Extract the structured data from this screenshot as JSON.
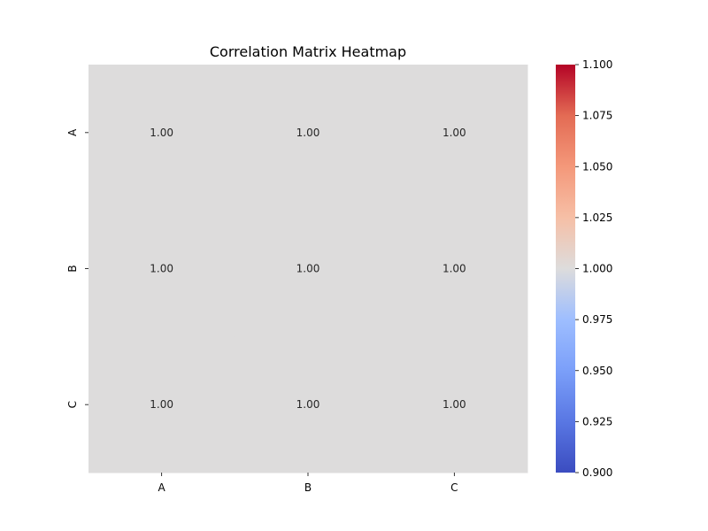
{
  "chart_data": {
    "type": "heatmap",
    "title": "Correlation Matrix Heatmap",
    "x_categories": [
      "A",
      "B",
      "C"
    ],
    "y_categories": [
      "A",
      "B",
      "C"
    ],
    "values": [
      [
        1.0,
        1.0,
        1.0
      ],
      [
        1.0,
        1.0,
        1.0
      ],
      [
        1.0,
        1.0,
        1.0
      ]
    ],
    "cell_labels": [
      [
        "1.00",
        "1.00",
        "1.00"
      ],
      [
        "1.00",
        "1.00",
        "1.00"
      ],
      [
        "1.00",
        "1.00",
        "1.00"
      ]
    ],
    "colormap": "coolwarm",
    "color_range": [
      0.9,
      1.1
    ],
    "colorbar_ticks": [
      "0.900",
      "0.925",
      "0.950",
      "0.975",
      "1.000",
      "1.025",
      "1.050",
      "1.075",
      "1.100"
    ],
    "colors": {
      "cell_fill": "#dddcdc",
      "low": "#3b4cc0",
      "mid": "#dddcdc",
      "high": "#b40426"
    },
    "legend_placement": "right"
  }
}
